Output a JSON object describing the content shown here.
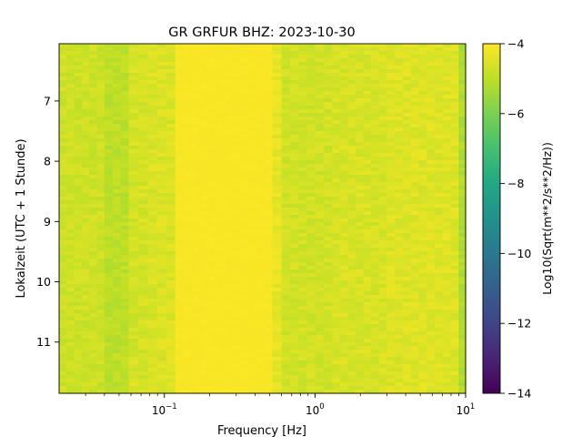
{
  "chart_data": {
    "type": "heatmap",
    "title": "GR GRFUR  BHZ: 2023-10-30",
    "xlabel": "Frequency [Hz]",
    "ylabel": "Lokalzeit (UTC + 1 Stunde)",
    "x_scale": "log",
    "xlim": [
      0.02,
      10
    ],
    "ylim": [
      11.85,
      6.05
    ],
    "y_inverted": true,
    "x_ticks": [
      {
        "value": 0.1,
        "base": "10",
        "exp": "−1"
      },
      {
        "value": 1,
        "base": "10",
        "exp": "0"
      },
      {
        "value": 10,
        "base": "10",
        "exp": "1"
      }
    ],
    "y_ticks": [
      {
        "value": 7,
        "label": "7"
      },
      {
        "value": 8,
        "label": "8"
      },
      {
        "value": 9,
        "label": "9"
      },
      {
        "value": 10,
        "label": "10"
      },
      {
        "value": 11,
        "label": "11"
      }
    ],
    "colorbar": {
      "label": "Log10(Sqrt(m**2/s**2/Hz))",
      "colormap": "viridis",
      "range": [
        -14,
        -4
      ],
      "ticks": [
        {
          "value": -4,
          "label": "−4"
        },
        {
          "value": -6,
          "label": "−6"
        },
        {
          "value": -8,
          "label": "−8"
        },
        {
          "value": -10,
          "label": "−10"
        },
        {
          "value": -12,
          "label": "−12"
        },
        {
          "value": -14,
          "label": "−14"
        }
      ]
    },
    "frequency_bands": [
      {
        "f_min": 0.02,
        "f_max": 0.04,
        "value": -4.75
      },
      {
        "f_min": 0.04,
        "f_max": 0.058,
        "value": -5.0
      },
      {
        "f_min": 0.058,
        "f_max": 0.078,
        "value": -4.65
      },
      {
        "f_min": 0.078,
        "f_max": 0.118,
        "value": -4.55
      },
      {
        "f_min": 0.118,
        "f_max": 0.52,
        "value": -4.12
      },
      {
        "f_min": 0.52,
        "f_max": 0.6,
        "value": -4.35
      },
      {
        "f_min": 0.6,
        "f_max": 1.3,
        "value": -4.7
      },
      {
        "f_min": 1.3,
        "f_max": 3.0,
        "value": -4.6
      },
      {
        "f_min": 3.0,
        "f_max": 9.0,
        "value": -4.5
      },
      {
        "f_min": 9.0,
        "f_max": 10,
        "value": -5.2
      }
    ],
    "grid": false,
    "legend": "colorbar-right"
  }
}
